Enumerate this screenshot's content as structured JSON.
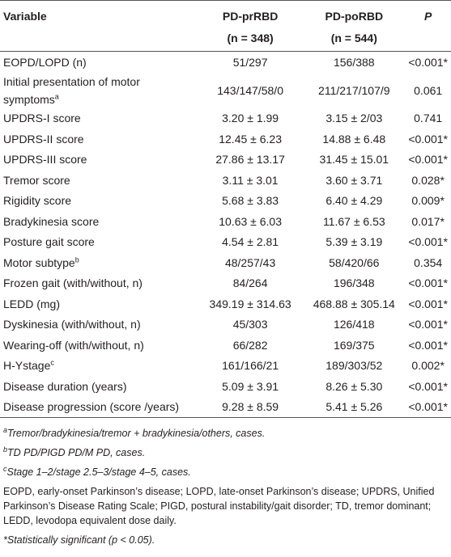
{
  "table": {
    "header": {
      "variable": "Variable",
      "group1": "PD-prRBD",
      "group1_n": "(n = 348)",
      "group2": "PD-poRBD",
      "group2_n": "(n = 544)",
      "p": "P"
    },
    "rows": [
      {
        "label": "EOPD/LOPD (n)",
        "pr": "51/297",
        "po": "156/388",
        "p": "<0.001*"
      },
      {
        "label": "Initial presentation of motor symptoms",
        "sup": "a",
        "pr": "143/147/58/0",
        "po": "211/217/107/9",
        "p": "0.061"
      },
      {
        "label": "UPDRS-I score",
        "pr": "3.20 ± 1.99",
        "po": "3.15 ± 2/03",
        "p": "0.741"
      },
      {
        "label": "UPDRS-II score",
        "pr": "12.45 ± 6.23",
        "po": "14.88 ± 6.48",
        "p": "<0.001*"
      },
      {
        "label": "UPDRS-III score",
        "pr": "27.86 ± 13.17",
        "po": "31.45 ± 15.01",
        "p": "<0.001*"
      },
      {
        "label": "Tremor score",
        "pr": "3.11 ± 3.01",
        "po": "3.60 ± 3.71",
        "p": "0.028*"
      },
      {
        "label": "Rigidity score",
        "pr": "5.68 ± 3.83",
        "po": "6.40 ± 4.29",
        "p": "0.009*"
      },
      {
        "label": "Bradykinesia score",
        "pr": "10.63 ± 6.03",
        "po": "11.67 ± 6.53",
        "p": "0.017*"
      },
      {
        "label": "Posture gait score",
        "pr": "4.54 ± 2.81",
        "po": "5.39 ± 3.19",
        "p": "<0.001*"
      },
      {
        "label": "Motor subtype",
        "sup": "b",
        "pr": "48/257/43",
        "po": "58/420/66",
        "p": "0.354"
      },
      {
        "label": "Frozen gait (with/without, n)",
        "pr": "84/264",
        "po": "196/348",
        "p": "<0.001*"
      },
      {
        "label": "LEDD (mg)",
        "pr": "349.19 ± 314.63",
        "po": "468.88 ± 305.14",
        "p": "<0.001*"
      },
      {
        "label": "Dyskinesia (with/without, n)",
        "pr": "45/303",
        "po": "126/418",
        "p": "<0.001*"
      },
      {
        "label": "Wearing-off (with/without, n)",
        "pr": "66/282",
        "po": "169/375",
        "p": "<0.001*"
      },
      {
        "label": "H-Ystage",
        "sup": "c",
        "pr": "161/166/21",
        "po": "189/303/52",
        "p": "0.002*"
      },
      {
        "label": "Disease duration (years)",
        "pr": "5.09 ± 3.91",
        "po": "8.26 ± 5.30",
        "p": "<0.001*"
      },
      {
        "label": "Disease progression (score /years)",
        "pr": "9.28 ± 8.59",
        "po": "5.41 ± 5.26",
        "p": "<0.001*"
      }
    ]
  },
  "footnotes": [
    {
      "mark": "a",
      "text": "Tremor/bradykinesia/tremor + bradykinesia/others, cases."
    },
    {
      "mark": "b",
      "text": "TD PD/PIGD PD/M PD, cases."
    },
    {
      "mark": "c",
      "text": "Stage 1–2/stage 2.5–3/stage 4–5, cases."
    },
    {
      "text": "EOPD, early-onset Parkinson’s disease; LOPD, late-onset Parkinson’s disease; UPDRS, Unified Parkinson’s Disease Rating Scale; PIGD, postural instability/gait disorder; TD, tremor dominant; LEDD, levodopa equivalent dose daily."
    },
    {
      "text": "*Statistically significant (p < 0.05)."
    }
  ]
}
